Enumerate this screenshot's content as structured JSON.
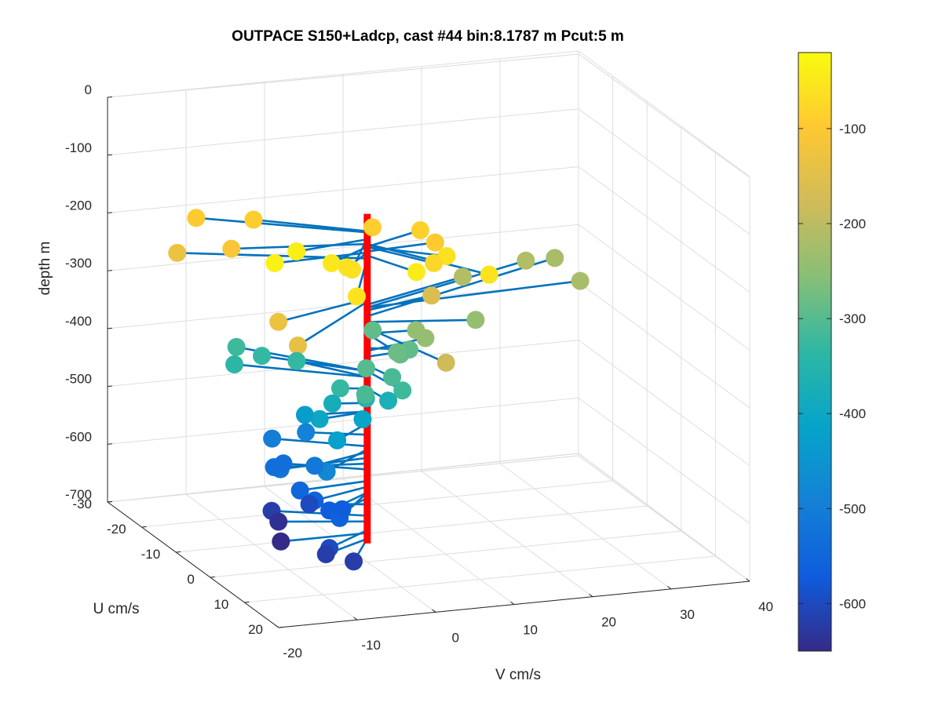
{
  "chart_data": {
    "type": "scatter",
    "title": "OUTPACE S150+Ladcp, cast #44 bin:8.1787 m  Pcut:5 m",
    "xlabel": "V cm/s",
    "ylabel": "U cm/s",
    "zlabel": "depth m",
    "xlim": [
      -20,
      40
    ],
    "ylim": [
      -30,
      20
    ],
    "zlim": [
      -700,
      0
    ],
    "x_ticks": [
      "-20",
      "-10",
      "0",
      "10",
      "20",
      "30",
      "40"
    ],
    "y_ticks": [
      "-30",
      "-20",
      "-10",
      "0",
      "10",
      "20"
    ],
    "z_ticks": [
      "0",
      "-100",
      "-200",
      "-300",
      "-400",
      "-500",
      "-600",
      "-700"
    ],
    "grid": true,
    "colorbar": {
      "ticks": [
        "-100",
        "-200",
        "-300",
        "-400",
        "-500",
        "-600"
      ],
      "range": [
        -650,
        -20
      ],
      "colormap": "parula"
    },
    "stem_color": "#0072BD",
    "axis_line_color": "#FF0000",
    "profile_note": "velocity vectors (V, U) drawn from a vertical axis at V=0, U=0 for each depth bin, colored by depth",
    "points": [
      {
        "v": -9.8,
        "u": 1.8,
        "z": -142,
        "c": -40
      },
      {
        "v": -17,
        "u": -11,
        "z": -130,
        "c": -95
      },
      {
        "v": -16,
        "u": -3,
        "z": -150,
        "c": -110
      },
      {
        "v": -11,
        "u": -8,
        "z": -128,
        "c": -90
      },
      {
        "v": -12,
        "u": 0.5,
        "z": -165,
        "c": -35
      },
      {
        "v": -20.5,
        "u": -8.5,
        "z": -175,
        "c": -130
      },
      {
        "v": -6.5,
        "u": 4.5,
        "z": -155,
        "c": -50
      },
      {
        "v": -6.5,
        "u": 10.5,
        "z": -140,
        "c": -60
      },
      {
        "v": -4.5,
        "u": 4.5,
        "z": -165,
        "c": -60
      },
      {
        "v": 3.5,
        "u": -6.5,
        "z": -154,
        "c": -90
      },
      {
        "v": 8.5,
        "u": -4,
        "z": -155,
        "c": -85
      },
      {
        "v": 9,
        "u": -0.8,
        "z": -163,
        "c": -95
      },
      {
        "v": 7.5,
        "u": 6,
        "z": -155,
        "c": -60
      },
      {
        "v": 9,
        "u": 15,
        "z": -150,
        "c": -55
      },
      {
        "v": 5,
        "u": 8,
        "z": -155,
        "c": -75
      },
      {
        "v": 3,
        "u": 7.5,
        "z": -170,
        "c": -45
      },
      {
        "v": -7,
        "u": 13,
        "z": -175,
        "c": -55
      },
      {
        "v": -13.5,
        "u": 5,
        "z": -245,
        "c": -130
      },
      {
        "v": -14.5,
        "u": 13,
        "z": -250,
        "c": -140
      },
      {
        "v": 15,
        "u": -6.5,
        "z": -255,
        "c": -210
      },
      {
        "v": 25,
        "u": -11,
        "z": -260,
        "c": -210
      },
      {
        "v": 30,
        "u": -14,
        "z": -275,
        "c": -220
      },
      {
        "v": 28,
        "u": -2,
        "z": -260,
        "c": -220
      },
      {
        "v": 12.5,
        "u": 3,
        "z": -285,
        "c": -240
      },
      {
        "v": 3.5,
        "u": 15,
        "z": -295,
        "c": -180
      },
      {
        "v": 9.5,
        "u": -3,
        "z": -265,
        "c": -160
      },
      {
        "v": 6,
        "u": 0.5,
        "z": -305,
        "c": -240
      },
      {
        "v": 2,
        "u": -3,
        "z": -315,
        "c": -290
      },
      {
        "v": 0.5,
        "u": 8.5,
        "z": -305,
        "c": -290
      },
      {
        "v": 4.5,
        "u": 2,
        "z": -330,
        "c": -290
      },
      {
        "v": 8.5,
        "u": -2.5,
        "z": -335,
        "c": -240
      },
      {
        "v": 4,
        "u": -0.5,
        "z": -345,
        "c": -280
      },
      {
        "v": -1,
        "u": 2,
        "z": -355,
        "c": -300
      },
      {
        "v": 1,
        "u": 5,
        "z": -360,
        "c": -310
      },
      {
        "v": 1,
        "u": 8,
        "z": -370,
        "c": -320
      },
      {
        "v": -11,
        "u": -13,
        "z": -370,
        "c": -320
      },
      {
        "v": -9.5,
        "u": -9,
        "z": -370,
        "c": -330
      },
      {
        "v": -5.5,
        "u": -8,
        "z": -380,
        "c": -330
      },
      {
        "v": -13,
        "u": -9,
        "z": -380,
        "c": -340
      },
      {
        "v": -3,
        "u": -1,
        "z": -400,
        "c": -330
      },
      {
        "v": -2,
        "u": 4,
        "z": -390,
        "c": -310
      },
      {
        "v": -3,
        "u": 6.5,
        "z": -385,
        "c": -350
      },
      {
        "v": 0.5,
        "u": 5,
        "z": -400,
        "c": -370
      },
      {
        "v": -4,
        "u": -1,
        "z": -425,
        "c": -380
      },
      {
        "v": -6.5,
        "u": 1,
        "z": -440,
        "c": -400
      },
      {
        "v": -6,
        "u": 5,
        "z": -460,
        "c": -420
      },
      {
        "v": -7.5,
        "u": -1,
        "z": -440,
        "c": -430
      },
      {
        "v": -0.8,
        "u": 0.5,
        "z": -450,
        "c": -410
      },
      {
        "v": -6.5,
        "u": -3,
        "z": -480,
        "c": -490
      },
      {
        "v": -9.5,
        "u": -6,
        "z": -500,
        "c": -500
      },
      {
        "v": -8,
        "u": 3,
        "z": -510,
        "c": -510
      },
      {
        "v": -8,
        "u": 6.5,
        "z": -505,
        "c": -480
      },
      {
        "v": -11.5,
        "u": 1,
        "z": -520,
        "c": -520
      },
      {
        "v": -11,
        "u": -2,
        "z": -530,
        "c": -530
      },
      {
        "v": -8.5,
        "u": -5,
        "z": -540,
        "c": -530
      },
      {
        "v": -9,
        "u": 1,
        "z": -560,
        "c": -550
      },
      {
        "v": -8,
        "u": 3,
        "z": -570,
        "c": -560
      },
      {
        "v": -7,
        "u": 5,
        "z": -580,
        "c": -570
      },
      {
        "v": -7,
        "u": 8,
        "z": -580,
        "c": -560
      },
      {
        "v": -4.5,
        "u": 3,
        "z": -590,
        "c": -570
      },
      {
        "v": -6.5,
        "u": -2,
        "z": -600,
        "c": -600
      },
      {
        "v": -10,
        "u": -5,
        "z": -620,
        "c": -620
      },
      {
        "v": -10,
        "u": -3,
        "z": -630,
        "c": -640
      },
      {
        "v": -11,
        "u": 0,
        "z": -650,
        "c": -650
      },
      {
        "v": -7,
        "u": 5,
        "z": -645,
        "c": -600
      },
      {
        "v": -7,
        "u": 4,
        "z": -660,
        "c": -620
      },
      {
        "v": -5,
        "u": 7.5,
        "z": -660,
        "c": -620
      }
    ]
  }
}
